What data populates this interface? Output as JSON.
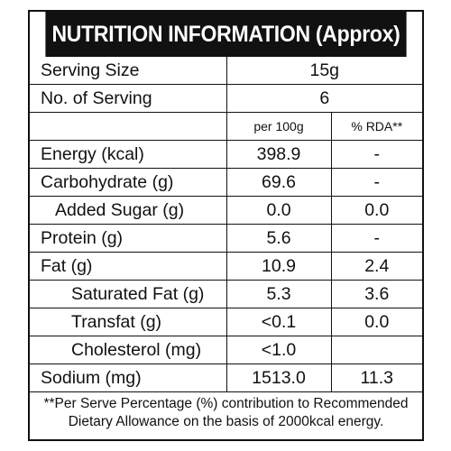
{
  "title": "NUTRITION INFORMATION (Approx)",
  "serving_size": {
    "label": "Serving Size",
    "value": "15g"
  },
  "no_of_serving": {
    "label": "No. of Serving",
    "value": "6"
  },
  "columns": {
    "per100g": "per 100g",
    "rda": "% RDA**"
  },
  "rows": [
    {
      "label": "Energy (kcal)",
      "per100g": "398.9",
      "rda": "-"
    },
    {
      "label": "Carbohydrate (g)",
      "per100g": "69.6",
      "rda": "-"
    },
    {
      "label": "Added Sugar (g)",
      "per100g": "0.0",
      "rda": "0.0"
    },
    {
      "label": "Protein (g)",
      "per100g": "5.6",
      "rda": "-"
    },
    {
      "label": "Fat (g)",
      "per100g": "10.9",
      "rda": "2.4"
    },
    {
      "label": "Saturated Fat (g)",
      "per100g": "5.3",
      "rda": "3.6"
    },
    {
      "label": "Transfat (g)",
      "per100g": "<0.1",
      "rda": "0.0"
    },
    {
      "label": "Cholesterol (mg)",
      "per100g": "<1.0",
      "rda": ""
    },
    {
      "label": "Sodium (mg)",
      "per100g": "1513.0",
      "rda": "11.3"
    }
  ],
  "footnote_line1": "**Per Serve Percentage (%) contribution to Recommended",
  "footnote_line2": "Dietary Allowance on the basis of 2000kcal energy."
}
